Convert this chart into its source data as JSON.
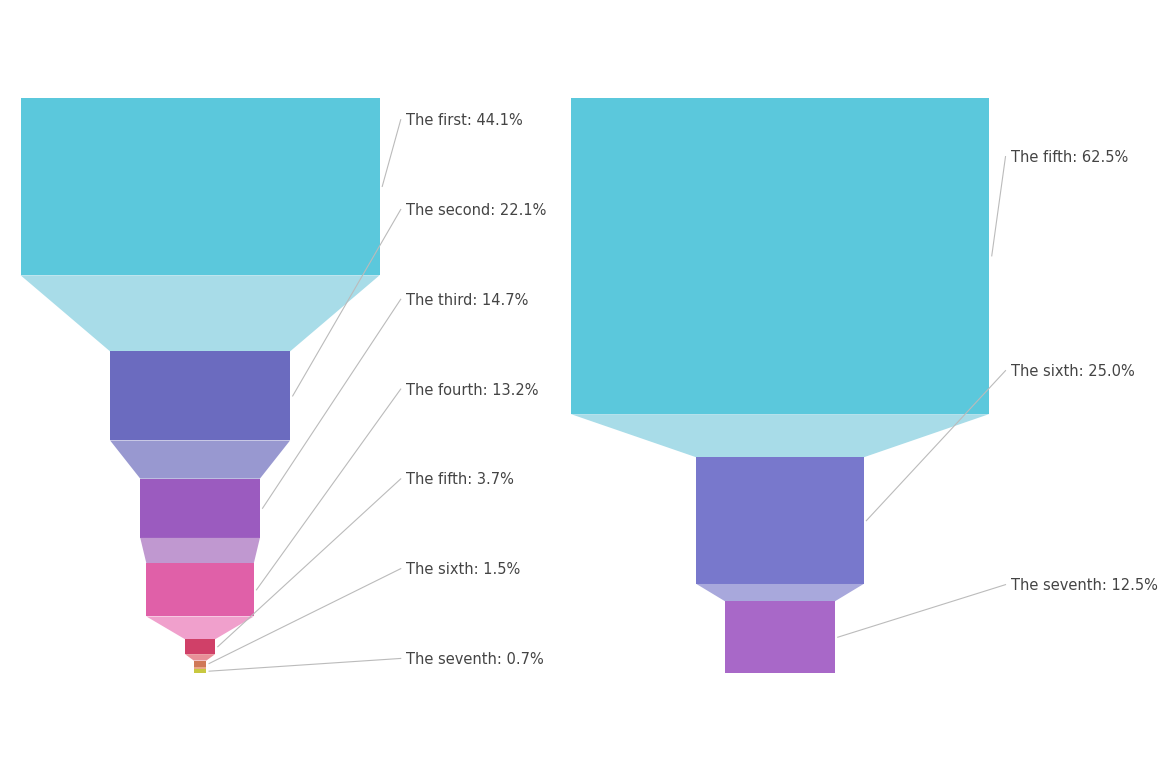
{
  "funnel1": {
    "labels": [
      "The first: 44.1%",
      "The second: 22.1%",
      "The third: 14.7%",
      "The fourth: 13.2%",
      "The fifth: 3.7%",
      "The sixth: 1.5%",
      "The seventh: 0.7%"
    ],
    "values": [
      44.1,
      22.1,
      14.7,
      13.2,
      3.7,
      1.5,
      0.7
    ],
    "colors": [
      "#5BC8DC",
      "#6B6BBF",
      "#9B5BBF",
      "#E060A8",
      "#D04068",
      "#D07858",
      "#C8C840"
    ],
    "trans_colors": [
      "#A8DCE8",
      "#9898D0",
      "#C098D0",
      "#F0A0CC",
      "#E89098",
      "#E8A888",
      "#D8D860"
    ]
  },
  "funnel2": {
    "labels": [
      "The fifth: 62.5%",
      "The sixth: 25.0%",
      "The seventh: 12.5%"
    ],
    "values": [
      62.5,
      25.0,
      12.5
    ],
    "colors": [
      "#5BC8DC",
      "#7878CC",
      "#A868C8"
    ],
    "trans_colors": [
      "#A8DCE8",
      "#A8A8DC",
      "#C898D8"
    ]
  },
  "bg_color": "#FFFFFF",
  "label_color": "#444444",
  "label_fontsize": 10.5,
  "line_color": "#BBBBBB"
}
